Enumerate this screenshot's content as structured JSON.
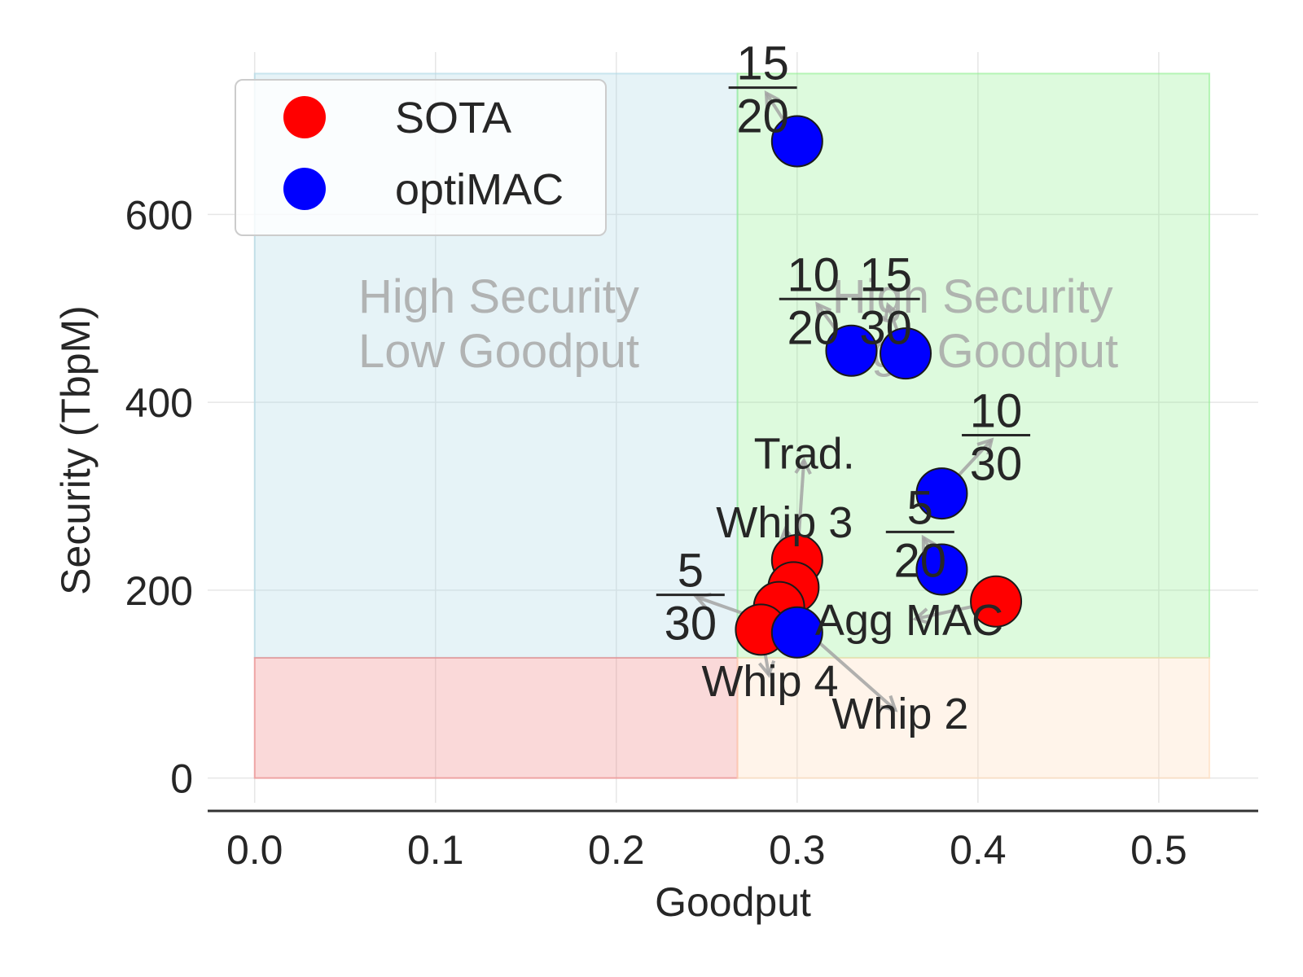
{
  "chart_data": {
    "type": "scatter",
    "xlabel": "Goodput",
    "ylabel": "Security (TbpM)",
    "xlim": [
      -0.026,
      0.555
    ],
    "ylim": [
      -35,
      785
    ],
    "x_ticks": [
      0.0,
      0.1,
      0.2,
      0.3,
      0.4,
      0.5
    ],
    "x_tick_labels": [
      "0.0",
      "0.1",
      "0.2",
      "0.3",
      "0.4",
      "0.5"
    ],
    "y_ticks": [
      0,
      200,
      400,
      600
    ],
    "y_tick_labels": [
      "0",
      "200",
      "400",
      "600"
    ],
    "grid": true,
    "legend": {
      "placement": "top-left",
      "entries": [
        {
          "name": "SOTA",
          "color": "#ff0000"
        },
        {
          "name": "optiMAC",
          "color": "#0000ff"
        }
      ]
    },
    "regions": [
      {
        "name": "high-security-low-goodput",
        "x": [
          0.0,
          0.267
        ],
        "y": [
          128,
          750
        ],
        "color": "#add8e6",
        "label_lines": [
          "High Security",
          "Low Goodput"
        ],
        "label_at": [
          0.135,
          485
        ]
      },
      {
        "name": "high-security-high-goodput",
        "x": [
          0.267,
          0.528
        ],
        "y": [
          128,
          750
        ],
        "color": "#90ee90",
        "label_lines": [
          "High Security",
          "High Goodput"
        ],
        "label_at": [
          0.397,
          485
        ]
      },
      {
        "name": "low-security-low-goodput",
        "x": [
          0.0,
          0.267
        ],
        "y": [
          0,
          128
        ],
        "color": "#f08080",
        "label_lines": [],
        "label_at": null
      },
      {
        "name": "low-security-high-goodput",
        "x": [
          0.267,
          0.528
        ],
        "y": [
          0,
          128
        ],
        "color": "#ffdab9",
        "label_lines": [],
        "label_at": null
      }
    ],
    "series": [
      {
        "name": "SOTA",
        "color": "#ff0000",
        "points": [
          {
            "x": 0.3,
            "y": 232,
            "label": "Trad.",
            "label_at": [
              0.304,
              345
            ]
          },
          {
            "x": 0.298,
            "y": 203,
            "label": "Whip 3",
            "label_at": [
              0.293,
              272
            ]
          },
          {
            "x": 0.29,
            "y": 182,
            "label": "Whip 2",
            "label_at": [
              0.357,
              68
            ]
          },
          {
            "x": 0.28,
            "y": 158,
            "label": "Whip 4",
            "label_at": [
              0.285,
              103
            ]
          },
          {
            "x": 0.41,
            "y": 188,
            "label": "Agg MAC",
            "label_at": [
              0.362,
              168
            ]
          }
        ]
      },
      {
        "name": "optiMAC",
        "color": "#0000ff",
        "points": [
          {
            "x": 0.3,
            "y": 678,
            "label": {
              "num": "15",
              "den": "20"
            },
            "label_at": [
              0.281,
              735
            ]
          },
          {
            "x": 0.33,
            "y": 455,
            "label": {
              "num": "10",
              "den": "20"
            },
            "label_at": [
              0.309,
              510
            ]
          },
          {
            "x": 0.36,
            "y": 452,
            "label": {
              "num": "15",
              "den": "30"
            },
            "label_at": [
              0.349,
              510
            ]
          },
          {
            "x": 0.38,
            "y": 303,
            "label": {
              "num": "10",
              "den": "30"
            },
            "label_at": [
              0.41,
              365
            ]
          },
          {
            "x": 0.38,
            "y": 222,
            "label": {
              "num": "5",
              "den": "20"
            },
            "label_at": [
              0.368,
              262
            ]
          },
          {
            "x": 0.3,
            "y": 155,
            "label": {
              "num": "5",
              "den": "30"
            },
            "label_at": [
              0.241,
              195
            ]
          }
        ]
      }
    ]
  }
}
